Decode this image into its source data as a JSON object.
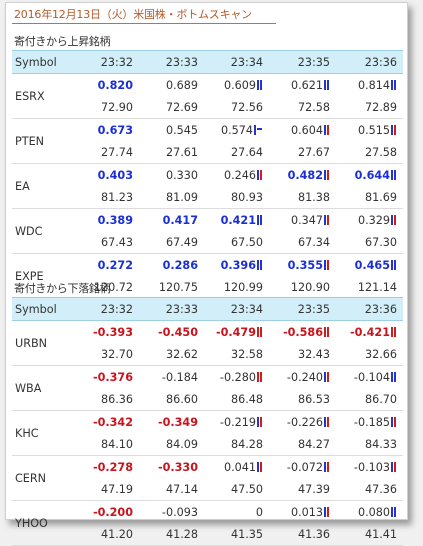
{
  "title": "2016年12月13日（火）米国株・ボトムスキャン",
  "colors": {
    "positive": "#1a2fd6",
    "negative": "#c8141c",
    "header_bg": "#d2eef8",
    "title": "#b15a2a"
  },
  "sections": [
    {
      "title": "寄付きから上昇銘柄",
      "header": [
        "Symbol",
        "23:32",
        "23:33",
        "23:34",
        "23:35",
        "23:36"
      ],
      "rows": [
        {
          "symbol": "ESRX",
          "changes": [
            {
              "value": "0.820",
              "style": "pos",
              "ind": ""
            },
            {
              "value": "0.689",
              "style": "plain",
              "ind": ""
            },
            {
              "value": "0.609",
              "style": "plain",
              "ind": "blue-blue"
            },
            {
              "value": "0.621",
              "style": "plain",
              "ind": "blue-blue"
            },
            {
              "value": "0.814",
              "style": "plain",
              "ind": "blue-blue"
            }
          ],
          "prices": [
            "72.90",
            "72.69",
            "72.56",
            "72.58",
            "72.89"
          ]
        },
        {
          "symbol": "PTEN",
          "changes": [
            {
              "value": "0.673",
              "style": "pos",
              "ind": ""
            },
            {
              "value": "0.545",
              "style": "plain",
              "ind": ""
            },
            {
              "value": "0.574",
              "style": "plain",
              "ind": "blue-dash"
            },
            {
              "value": "0.604",
              "style": "plain",
              "ind": "blue-red"
            },
            {
              "value": "0.515",
              "style": "plain",
              "ind": "blue-red"
            }
          ],
          "prices": [
            "27.74",
            "27.61",
            "27.64",
            "27.67",
            "27.58"
          ]
        },
        {
          "symbol": "EA",
          "changes": [
            {
              "value": "0.403",
              "style": "pos",
              "ind": ""
            },
            {
              "value": "0.330",
              "style": "plain",
              "ind": ""
            },
            {
              "value": "0.246",
              "style": "plain",
              "ind": "blue-red"
            },
            {
              "value": "0.482",
              "style": "pos",
              "ind": "blue-red"
            },
            {
              "value": "0.644",
              "style": "pos",
              "ind": "blue-blue"
            }
          ],
          "prices": [
            "81.23",
            "81.09",
            "80.93",
            "81.38",
            "81.69"
          ]
        },
        {
          "symbol": "WDC",
          "changes": [
            {
              "value": "0.389",
              "style": "pos",
              "ind": ""
            },
            {
              "value": "0.417",
              "style": "pos",
              "ind": ""
            },
            {
              "value": "0.421",
              "style": "pos",
              "ind": "blue-blue"
            },
            {
              "value": "0.347",
              "style": "plain",
              "ind": "blue-red"
            },
            {
              "value": "0.329",
              "style": "plain",
              "ind": "blue-red"
            }
          ],
          "prices": [
            "67.43",
            "67.49",
            "67.50",
            "67.34",
            "67.30"
          ]
        },
        {
          "symbol": "EXPE",
          "changes": [
            {
              "value": "0.272",
              "style": "pos",
              "ind": ""
            },
            {
              "value": "0.286",
              "style": "pos",
              "ind": ""
            },
            {
              "value": "0.396",
              "style": "pos",
              "ind": "blue-blue"
            },
            {
              "value": "0.355",
              "style": "pos",
              "ind": "blue-red"
            },
            {
              "value": "0.465",
              "style": "pos",
              "ind": "blue-blue"
            }
          ],
          "prices": [
            "120.72",
            "120.75",
            "120.99",
            "120.90",
            "121.14"
          ]
        }
      ]
    },
    {
      "title": "寄付きから下落銘柄",
      "header": [
        "Symbol",
        "23:32",
        "23:33",
        "23:34",
        "23:35",
        "23:36"
      ],
      "rows": [
        {
          "symbol": "URBN",
          "changes": [
            {
              "value": "-0.393",
              "style": "neg",
              "ind": ""
            },
            {
              "value": "-0.450",
              "style": "neg",
              "ind": ""
            },
            {
              "value": "-0.479",
              "style": "neg",
              "ind": "red-red"
            },
            {
              "value": "-0.586",
              "style": "neg",
              "ind": "red-red"
            },
            {
              "value": "-0.421",
              "style": "neg",
              "ind": "red-red"
            }
          ],
          "prices": [
            "32.70",
            "32.62",
            "32.58",
            "32.43",
            "32.66"
          ]
        },
        {
          "symbol": "WBA",
          "changes": [
            {
              "value": "-0.376",
              "style": "neg",
              "ind": ""
            },
            {
              "value": "-0.184",
              "style": "plain",
              "ind": ""
            },
            {
              "value": "-0.280",
              "style": "plain",
              "ind": "red-red"
            },
            {
              "value": "-0.240",
              "style": "plain",
              "ind": "blue-red"
            },
            {
              "value": "-0.104",
              "style": "plain",
              "ind": "blue-blue"
            }
          ],
          "prices": [
            "86.36",
            "86.60",
            "86.48",
            "86.53",
            "86.70"
          ]
        },
        {
          "symbol": "KHC",
          "changes": [
            {
              "value": "-0.342",
              "style": "neg",
              "ind": ""
            },
            {
              "value": "-0.349",
              "style": "neg",
              "ind": ""
            },
            {
              "value": "-0.219",
              "style": "plain",
              "ind": "blue-red"
            },
            {
              "value": "-0.226",
              "style": "plain",
              "ind": "blue-red"
            },
            {
              "value": "-0.185",
              "style": "plain",
              "ind": "blue-red"
            }
          ],
          "prices": [
            "84.10",
            "84.09",
            "84.28",
            "84.27",
            "84.33"
          ]
        },
        {
          "symbol": "CERN",
          "changes": [
            {
              "value": "-0.278",
              "style": "neg",
              "ind": ""
            },
            {
              "value": "-0.330",
              "style": "neg",
              "ind": ""
            },
            {
              "value": "0.041",
              "style": "plain",
              "ind": "blue-red"
            },
            {
              "value": "-0.072",
              "style": "plain",
              "ind": "blue-red"
            },
            {
              "value": "-0.103",
              "style": "plain",
              "ind": "blue-red"
            }
          ],
          "prices": [
            "47.19",
            "47.14",
            "47.50",
            "47.39",
            "47.36"
          ]
        },
        {
          "symbol": "YHOO",
          "changes": [
            {
              "value": "-0.200",
              "style": "neg",
              "ind": ""
            },
            {
              "value": "-0.093",
              "style": "plain",
              "ind": ""
            },
            {
              "value": "0",
              "style": "plain",
              "ind": ""
            },
            {
              "value": "0.013",
              "style": "plain",
              "ind": "blue-red"
            },
            {
              "value": "0.080",
              "style": "plain",
              "ind": "blue-blue"
            }
          ],
          "prices": [
            "41.20",
            "41.28",
            "41.35",
            "41.36",
            "41.41"
          ]
        }
      ]
    }
  ]
}
